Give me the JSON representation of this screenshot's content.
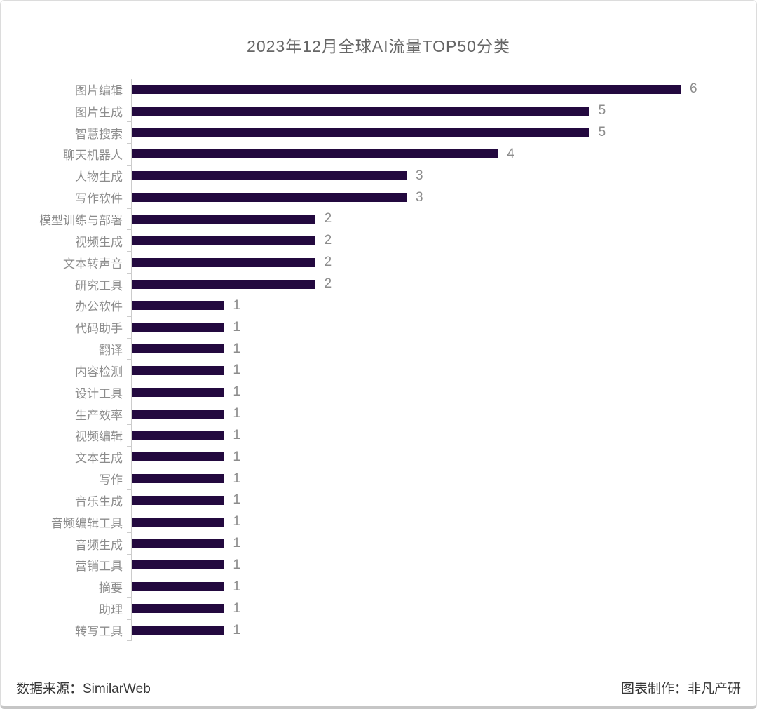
{
  "title": "2023年12月全球AI流量TOP50分类",
  "footer": {
    "source": "数据来源：SimilarWeb",
    "credit": "图表制作：非凡产研"
  },
  "colors": {
    "bar": "#23093F",
    "axis": "#cccccc",
    "label": "#8c8c8c",
    "title": "#666666",
    "footer_text": "#363636"
  },
  "chart_data": {
    "type": "bar",
    "orientation": "horizontal",
    "title": "2023年12月全球AI流量TOP50分类",
    "xlabel": "",
    "ylabel": "",
    "xlim": [
      0,
      6.7
    ],
    "grid": false,
    "legend": false,
    "value_labels_shown": true,
    "categories": [
      "图片编辑",
      "图片生成",
      "智慧搜索",
      "聊天机器人",
      "人物生成",
      "写作软件",
      "模型训练与部署",
      "视频生成",
      "文本转声音",
      "研究工具",
      "办公软件",
      "代码助手",
      "翻译",
      "内容检测",
      "设计工具",
      "生产效率",
      "视频编辑",
      "文本生成",
      "写作",
      "音乐生成",
      "音频编辑工具",
      "音频生成",
      "营销工具",
      "摘要",
      "助理",
      "转写工具"
    ],
    "values": [
      6,
      5,
      5,
      4,
      3,
      3,
      2,
      2,
      2,
      2,
      1,
      1,
      1,
      1,
      1,
      1,
      1,
      1,
      1,
      1,
      1,
      1,
      1,
      1,
      1,
      1
    ]
  }
}
